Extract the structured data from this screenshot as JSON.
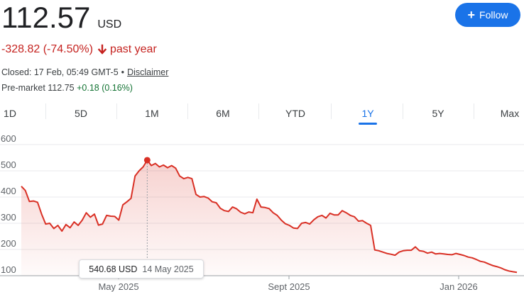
{
  "quote": {
    "price": "112.57",
    "currency": "USD",
    "change_text": "-328.82 (-74.50%)",
    "change_period": "past year",
    "closed_text": "Closed: 17 Feb, 05:49 GMT-5",
    "disclaimer_label": "Disclaimer",
    "premarket_label": "Pre-market 112.75",
    "premarket_change": "+0.18 (0.16%)"
  },
  "follow_button": {
    "label": "Follow"
  },
  "range_tabs": [
    {
      "label": "1D"
    },
    {
      "label": "5D"
    },
    {
      "label": "1M"
    },
    {
      "label": "6M"
    },
    {
      "label": "YTD"
    },
    {
      "label": "1Y",
      "active": true
    },
    {
      "label": "5Y"
    },
    {
      "label": "Max"
    }
  ],
  "colors": {
    "negative": "#c5221f",
    "positive": "#137333",
    "accent": "#1a73e8",
    "line": "#d93025"
  },
  "tooltip": {
    "value": "540.68 USD",
    "date": "14 May 2025"
  },
  "chart_data": {
    "type": "area",
    "x_ticks": [
      "May 2025",
      "Sept 2025",
      "Jan 2026"
    ],
    "y_ticks": [
      100,
      200,
      300,
      400,
      500,
      600
    ],
    "ylim": [
      100,
      600
    ],
    "highlight": {
      "date": "14 May 2025",
      "value": 540.68
    },
    "series": [
      {
        "values": [
          441,
          425,
          383,
          385,
          380,
          335,
          297,
          300,
          280,
          292,
          270,
          295,
          283,
          305,
          292,
          312,
          340,
          323,
          335,
          293,
          297,
          330,
          327,
          326,
          312,
          370,
          382,
          395,
          480,
          500,
          515,
          540.68,
          520,
          528,
          515,
          522,
          512,
          520,
          510,
          480,
          470,
          475,
          470,
          410,
          400,
          402,
          396,
          382,
          378,
          357,
          348,
          345,
          362,
          355,
          342,
          336,
          343,
          340,
          392,
          362,
          360,
          356,
          340,
          330,
          312,
          298,
          292,
          282,
          280,
          300,
          303,
          297,
          313,
          325,
          330,
          320,
          338,
          332,
          332,
          348,
          340,
          330,
          325,
          308,
          310,
          300,
          292,
          198,
          195,
          190,
          185,
          182,
          178,
          190,
          195,
          197,
          197,
          210,
          195,
          193,
          186,
          190,
          183,
          185,
          183,
          181,
          180,
          185,
          181,
          177,
          171,
          168,
          162,
          155,
          152,
          145,
          139,
          135,
          130,
          123,
          118,
          115,
          112.57
        ]
      }
    ]
  }
}
